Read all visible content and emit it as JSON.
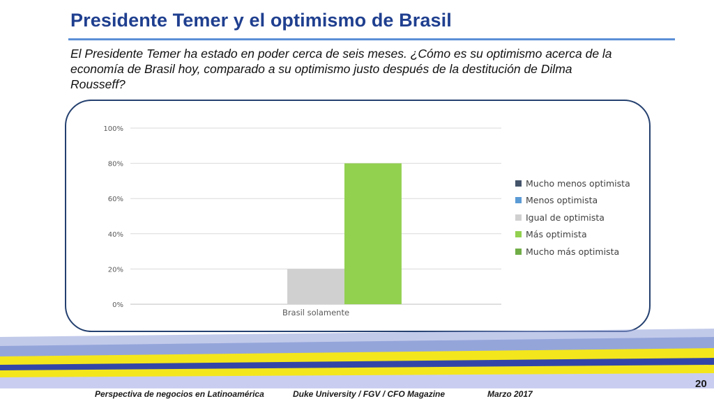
{
  "slide": {
    "title": "Presidente Temer y el optimismo de Brasil",
    "question": "El Presidente Temer ha estado en poder cerca de seis meses. ¿Cómo es su optimismo acerca de la economía de Brasil hoy, comparado a su optimismo justo después de la destitución de Dilma Rousseff?",
    "page_number": "20"
  },
  "footer": {
    "left": "Perspectiva de negocios en Latinoamérica",
    "center": "Duke University / FGV / CFO Magazine",
    "right": "Marzo 2017"
  },
  "chart_data": {
    "type": "bar",
    "categories": [
      "Brasil solamente"
    ],
    "series": [
      {
        "name": "Mucho menos optimista",
        "values": [
          0
        ],
        "color": "#44546a"
      },
      {
        "name": "Menos optimista",
        "values": [
          0
        ],
        "color": "#5b9bd5"
      },
      {
        "name": "Igual de optimista",
        "values": [
          20
        ],
        "color": "#d0d0d0"
      },
      {
        "name": "Más optimista",
        "values": [
          80
        ],
        "color": "#92d050"
      },
      {
        "name": "Mucho más optimista",
        "values": [
          0
        ],
        "color": "#70ad47"
      }
    ],
    "y_ticks": [
      "0%",
      "20%",
      "40%",
      "60%",
      "80%",
      "100%"
    ],
    "ylim": [
      0,
      100
    ],
    "grid": true,
    "legend_position": "right"
  }
}
